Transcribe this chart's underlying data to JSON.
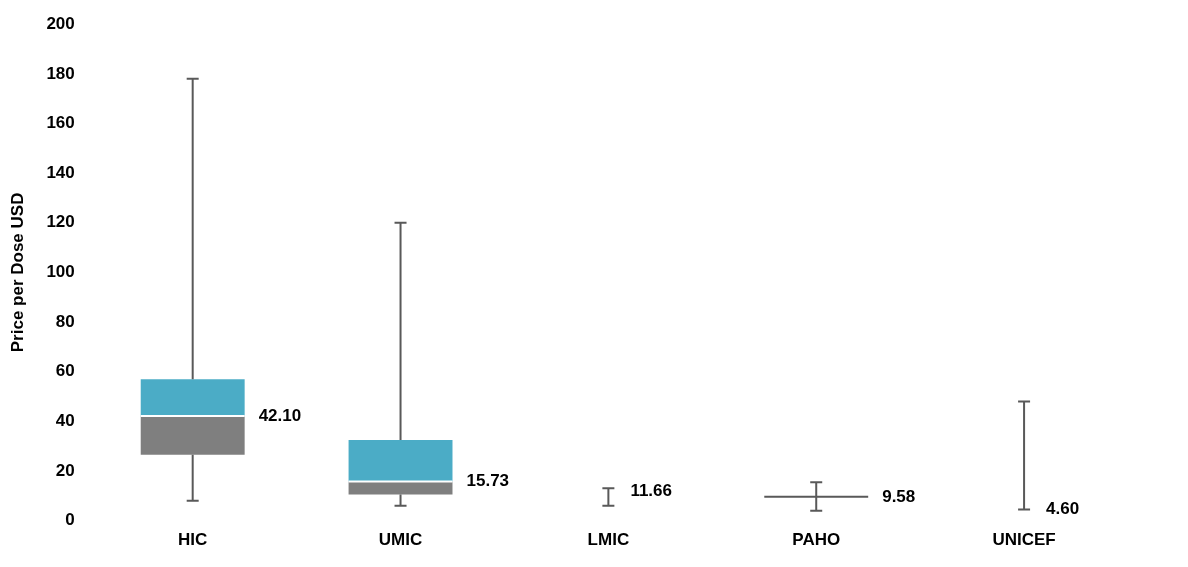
{
  "chart_data": {
    "type": "box",
    "ylabel": "Price per Dose USD",
    "categories": [
      "HIC",
      "UMIC",
      "LMIC",
      "PAHO",
      "UNICEF"
    ],
    "boxes": [
      {
        "low": 8,
        "q1": 26.5,
        "median": 42.1,
        "q3": 57,
        "high": 178
      },
      {
        "low": 6,
        "q1": 10.5,
        "median": 15.73,
        "q3": 32.5,
        "high": 120
      },
      {
        "low": 6,
        "q1": 11.66,
        "median": 11.66,
        "q3": 11.66,
        "high": 13
      },
      {
        "low": 4,
        "q1": 9.58,
        "median": 9.58,
        "q3": 9.58,
        "high": 15.5
      },
      {
        "low": 4.5,
        "q1": 4.6,
        "median": 4.6,
        "q3": 4.6,
        "high": 48
      }
    ],
    "value_labels": [
      "42.10",
      "15.73",
      "11.66",
      "9.58",
      "4.60"
    ],
    "color": "#4bacc6",
    "colors": [
      "#7f7f7f",
      "#7f7f7f",
      "#595959",
      "#595959",
      "#595959"
    ],
    "ylim": [
      0,
      200
    ],
    "yticks": [
      0,
      20,
      40,
      60,
      80,
      100,
      120,
      140,
      160,
      180,
      200
    ],
    "grid": false,
    "legend": false
  }
}
